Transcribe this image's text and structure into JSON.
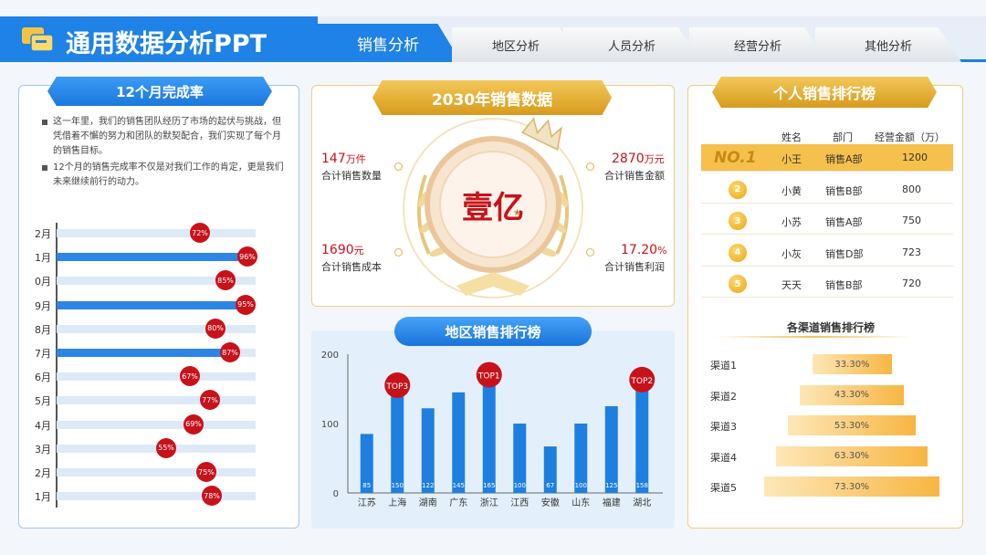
{
  "header": {
    "title": "通用数据分析PPT",
    "tabs": [
      {
        "label": "销售分析",
        "active": true
      },
      {
        "label": "地区分析",
        "active": false
      },
      {
        "label": "人员分析",
        "active": false
      },
      {
        "label": "经营分析",
        "active": false
      },
      {
        "label": "其他分析",
        "active": false
      }
    ]
  },
  "completion": {
    "title": "12个月完成率",
    "paragraphs": [
      "这一年里，我们的销售团队经历了市场的起伏与挑战，但凭借着不懈的努力和团队的默契配合，我们实现了每个月的销售目标。",
      "12个月的销售完成率不仅是对我们工作的肯定，更是我们未来继续前行的动力。"
    ],
    "months": [
      {
        "label": "2月",
        "value": 72,
        "highlight": false
      },
      {
        "label": "1月",
        "value": 96,
        "highlight": true
      },
      {
        "label": "0月",
        "value": 85,
        "highlight": false
      },
      {
        "label": "9月",
        "value": 95,
        "highlight": true
      },
      {
        "label": "8月",
        "value": 80,
        "highlight": false
      },
      {
        "label": "7月",
        "value": 87,
        "highlight": true
      },
      {
        "label": "6月",
        "value": 67,
        "highlight": false
      },
      {
        "label": "5月",
        "value": 77,
        "highlight": false
      },
      {
        "label": "4月",
        "value": 69,
        "highlight": false
      },
      {
        "label": "3月",
        "value": 55,
        "highlight": false
      },
      {
        "label": "2月",
        "value": 75,
        "highlight": false
      },
      {
        "label": "1月",
        "value": 78,
        "highlight": false
      }
    ]
  },
  "sales2030": {
    "title": "2030年销售数据",
    "center": "壹亿",
    "stats": [
      {
        "value": "147",
        "unit": "万件",
        "label": "合计销售数量"
      },
      {
        "value": "2870",
        "unit": "万元",
        "label": "合计销售金额"
      },
      {
        "value": "1690",
        "unit": "元",
        "label": "合计销售成本"
      },
      {
        "value": "17.20",
        "unit": "%",
        "label": "合计销售利润"
      }
    ]
  },
  "chart_data": {
    "type": "bar",
    "title": "地区销售排行榜",
    "categories": [
      "江苏",
      "上海",
      "湖南",
      "广东",
      "浙江",
      "江西",
      "安徽",
      "山东",
      "福建",
      "湖北"
    ],
    "values": [
      85,
      150,
      122,
      145,
      165,
      100,
      67,
      100,
      125,
      158
    ],
    "ylim": [
      0,
      200
    ],
    "yticks": [
      "0",
      "100",
      "200"
    ],
    "tops": [
      {
        "category": "上海",
        "label": "TOP3"
      },
      {
        "category": "浙江",
        "label": "TOP1"
      },
      {
        "category": "湖北",
        "label": "TOP2"
      }
    ],
    "color": "#1e7fe0"
  },
  "ranking": {
    "title": "个人销售排行榜",
    "headers": [
      "姓名",
      "部门",
      "经营金额（万）"
    ],
    "no1": "NO.1",
    "rows": [
      {
        "rank": "1",
        "name": "小王",
        "dept": "销售A部",
        "amount": "1200"
      },
      {
        "rank": "2",
        "name": "小黄",
        "dept": "销售B部",
        "amount": "800"
      },
      {
        "rank": "3",
        "name": "小苏",
        "dept": "销售A部",
        "amount": "750"
      },
      {
        "rank": "4",
        "name": "小灰",
        "dept": "销售D部",
        "amount": "723"
      },
      {
        "rank": "5",
        "name": "天天",
        "dept": "销售B部",
        "amount": "720"
      }
    ]
  },
  "channels": {
    "title": "各渠道销售排行榜",
    "items": [
      {
        "label": "渠道1",
        "value": "33.30%",
        "fraction": 0.333
      },
      {
        "label": "渠道2",
        "value": "43.30%",
        "fraction": 0.433
      },
      {
        "label": "渠道3",
        "value": "53.30%",
        "fraction": 0.533
      },
      {
        "label": "渠道4",
        "value": "63.30%",
        "fraction": 0.633
      },
      {
        "label": "渠道5",
        "value": "73.30%",
        "fraction": 0.733
      }
    ]
  }
}
